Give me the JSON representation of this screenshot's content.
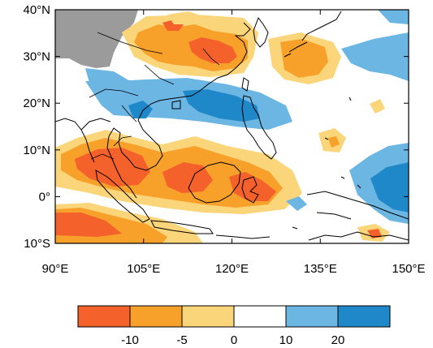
{
  "map": {
    "lon_range": [
      90,
      150
    ],
    "lat_range": [
      -10,
      40
    ],
    "lon_ticks": [
      {
        "value": 90,
        "label": "90°E"
      },
      {
        "value": 105,
        "label": "105°E"
      },
      {
        "value": 120,
        "label": "120°E"
      },
      {
        "value": 135,
        "label": "135°E"
      },
      {
        "value": 150,
        "label": "150°E"
      }
    ],
    "lat_ticks": [
      {
        "value": 40,
        "label": "40°N"
      },
      {
        "value": 30,
        "label": "30°N"
      },
      {
        "value": 20,
        "label": "20°N"
      },
      {
        "value": 10,
        "label": "10°N"
      },
      {
        "value": 0,
        "label": "0°"
      },
      {
        "value": -10,
        "label": "10°S"
      }
    ],
    "missing_color": "#9b9b9b"
  },
  "colorbar": {
    "bins": [
      {
        "color": "#f4612a"
      },
      {
        "color": "#f7a12b"
      },
      {
        "color": "#fbd57a"
      },
      {
        "color": "#ffffff"
      },
      {
        "color": "#6cb6e4"
      },
      {
        "color": "#1f88c9"
      }
    ],
    "labels": [
      "-10",
      "-5",
      "0",
      "10",
      "20"
    ]
  }
}
